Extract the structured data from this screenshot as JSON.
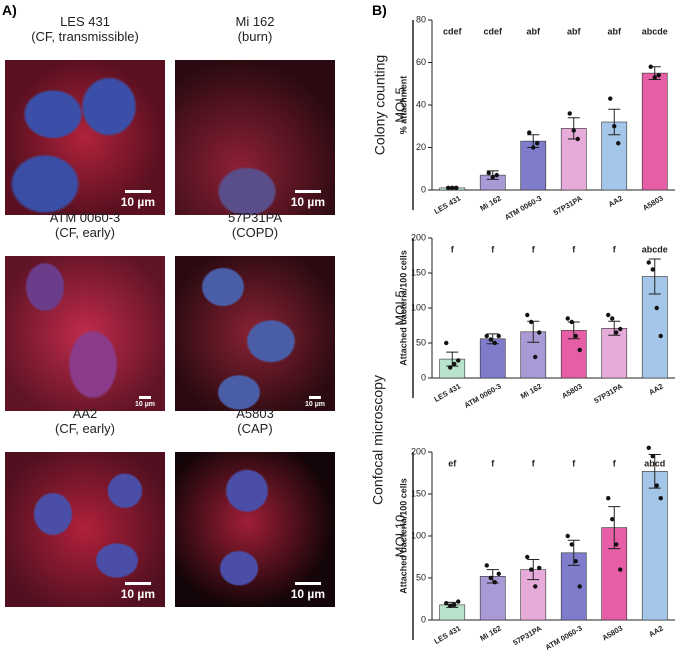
{
  "panel_a": {
    "label": "A)",
    "images": [
      {
        "name": "LES 431",
        "detail": "(CF, transmissible)",
        "scale": "10 µm"
      },
      {
        "name": "Mi 162",
        "detail": "(burn)",
        "scale": "10 µm"
      },
      {
        "name": "ATM 0060-3",
        "detail": "(CF, early)",
        "scale": "10 µm"
      },
      {
        "name": "57P31PA",
        "detail": "(COPD)",
        "scale": "10 µm"
      },
      {
        "name": "AA2",
        "detail": "(CF, early)",
        "scale": "10 µm"
      },
      {
        "name": "A5803",
        "detail": "(CAP)",
        "scale": "10 µm"
      }
    ]
  },
  "panel_b": {
    "label": "B)",
    "sections": [
      "Colony counting",
      "Confocal microscopy"
    ]
  },
  "chart_data": [
    {
      "type": "bar",
      "subtitle": "MOI 5",
      "ylabel": "% attachment",
      "categories": [
        "LES 431",
        "Mi 162",
        "ATM 0060-3",
        "57P31PA",
        "AA2",
        "A5803"
      ],
      "values": [
        1,
        7,
        23,
        29,
        32,
        55
      ],
      "errors": [
        0.5,
        2,
        3,
        5,
        6,
        3
      ],
      "points": [
        [
          1,
          1,
          1
        ],
        [
          8,
          6,
          7
        ],
        [
          27,
          20,
          22
        ],
        [
          36,
          28,
          24
        ],
        [
          43,
          30,
          22
        ],
        [
          58,
          53,
          54
        ]
      ],
      "letters": [
        "cdef",
        "cdef",
        "abf",
        "abf",
        "abf",
        "abcde"
      ],
      "colors": [
        "#b9e3cc",
        "#a99ad6",
        "#7f7ccc",
        "#e7abd9",
        "#a4c6e8",
        "#e55ea6"
      ],
      "ylim": [
        0,
        80
      ],
      "yticks": [
        0,
        20,
        40,
        60,
        80
      ]
    },
    {
      "type": "bar",
      "subtitle": "MOI 5",
      "ylabel": "Attached bacteria/100 cells",
      "categories": [
        "LES 431",
        "ATM 0060-3",
        "Mi 162",
        "A5803",
        "57P31PA",
        "AA2"
      ],
      "values": [
        27,
        56,
        66,
        68,
        71,
        145
      ],
      "errors": [
        10,
        7,
        15,
        12,
        10,
        25
      ],
      "points": [
        [
          50,
          15,
          20,
          25
        ],
        [
          60,
          55,
          50,
          60
        ],
        [
          90,
          80,
          30,
          65
        ],
        [
          85,
          80,
          60,
          40
        ],
        [
          90,
          85,
          65,
          70
        ],
        [
          165,
          155,
          100,
          60
        ]
      ],
      "letters": [
        "f",
        "f",
        "f",
        "f",
        "f",
        "abcde"
      ],
      "colors": [
        "#b9e3cc",
        "#7f7ccc",
        "#a99ad6",
        "#e55ea6",
        "#e7abd9",
        "#a4c6e8"
      ],
      "ylim": [
        0,
        200
      ],
      "yticks": [
        0,
        50,
        100,
        150,
        200
      ]
    },
    {
      "type": "bar",
      "subtitle": "MOI 10",
      "ylabel": "Attached bacteria/100 cells",
      "categories": [
        "LES 431",
        "Mi 162",
        "57P31PA",
        "ATM 0060-3",
        "A5803",
        "AA2"
      ],
      "values": [
        18,
        52,
        60,
        80,
        110,
        177
      ],
      "errors": [
        3,
        8,
        12,
        15,
        25,
        20
      ],
      "points": [
        [
          20,
          17,
          18,
          22
        ],
        [
          65,
          50,
          45,
          55
        ],
        [
          75,
          60,
          40,
          62
        ],
        [
          100,
          90,
          70,
          40
        ],
        [
          145,
          120,
          90,
          60
        ],
        [
          205,
          195,
          160,
          145
        ]
      ],
      "letters": [
        "ef",
        "f",
        "f",
        "f",
        "f",
        "abcd"
      ],
      "colors": [
        "#b9e3cc",
        "#a99ad6",
        "#e7abd9",
        "#7f7ccc",
        "#e55ea6",
        "#a4c6e8"
      ],
      "ylim": [
        0,
        200
      ],
      "yticks": [
        0,
        50,
        100,
        150,
        200
      ]
    }
  ]
}
